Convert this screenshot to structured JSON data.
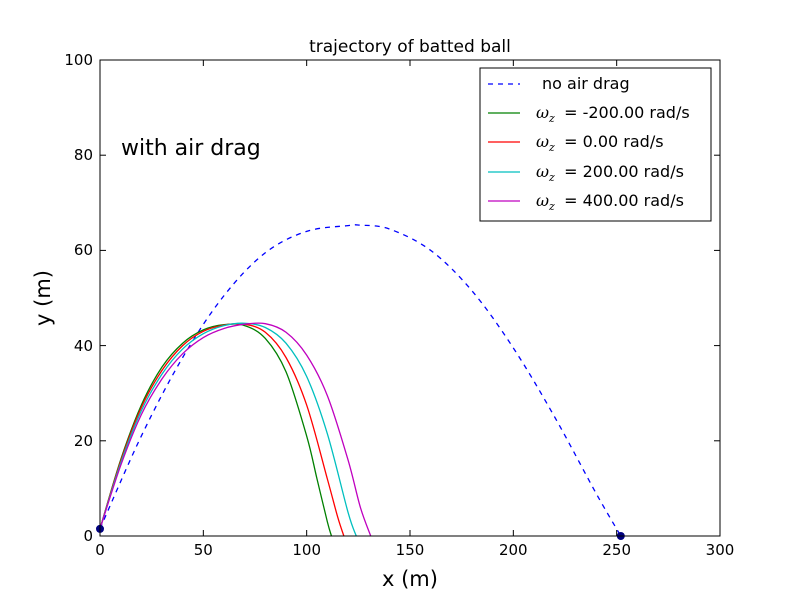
{
  "chart_data": {
    "type": "line",
    "title": "trajectory of batted ball",
    "xlabel": "x (m)",
    "ylabel": "y (m)",
    "xlim": [
      0,
      300
    ],
    "ylim": [
      0,
      100
    ],
    "xticks": [
      "0",
      "50",
      "100",
      "150",
      "200",
      "250",
      "300"
    ],
    "yticks": [
      "0",
      "20",
      "40",
      "60",
      "80",
      "100"
    ],
    "grid": false,
    "legend_position": "top-right",
    "annotation": "with air drag",
    "series": [
      {
        "name": "no air drag",
        "color": "#0000ff",
        "style": "dashed",
        "x": [
          0,
          20,
          40,
          60,
          80,
          100,
          120,
          126,
          140,
          160,
          180,
          200,
          220,
          240,
          252
        ],
        "y": [
          1.5,
          21.0,
          37.5,
          50.5,
          59.5,
          64.0,
          65.2,
          65.3,
          64.5,
          60.0,
          51.5,
          39.5,
          25.0,
          9.0,
          0
        ]
      },
      {
        "name": "ω_z = -200.00 rad/s",
        "label_prefix": "ω",
        "label_sub": "z",
        "label_rest": " = -200.00 rad/s",
        "color": "#008000",
        "style": "solid",
        "x": [
          0,
          10,
          20,
          30,
          40,
          50,
          60,
          70,
          80,
          90,
          100,
          105,
          110,
          112
        ],
        "y": [
          1.5,
          16.0,
          27.5,
          35.5,
          40.5,
          43.3,
          44.4,
          44.2,
          41.5,
          34.5,
          21.0,
          12.0,
          3.0,
          0
        ]
      },
      {
        "name": "ω_z = 0.00 rad/s",
        "label_prefix": "ω",
        "label_sub": "z",
        "label_rest": " = 0.00 rad/s",
        "color": "#ff0000",
        "style": "solid",
        "x": [
          0,
          10,
          20,
          30,
          40,
          50,
          60,
          70,
          80,
          90,
          100,
          110,
          115,
          118
        ],
        "y": [
          1.5,
          15.7,
          27.0,
          34.8,
          40.0,
          43.0,
          44.3,
          44.5,
          42.8,
          37.5,
          27.5,
          12.0,
          4.0,
          0
        ]
      },
      {
        "name": "ω_z = 200.00 rad/s",
        "label_prefix": "ω",
        "label_sub": "z",
        "label_rest": " = 200.00 rad/s",
        "color": "#00bfbf",
        "style": "solid",
        "x": [
          0,
          10,
          20,
          30,
          40,
          50,
          60,
          70,
          80,
          90,
          100,
          110,
          120,
          124
        ],
        "y": [
          1.5,
          15.3,
          26.3,
          34.0,
          39.3,
          42.5,
          44.2,
          44.7,
          43.8,
          40.5,
          33.5,
          21.5,
          5.0,
          0
        ]
      },
      {
        "name": "ω_z = 400.00 rad/s",
        "label_prefix": "ω",
        "label_sub": "z",
        "label_rest": " = 400.00 rad/s",
        "color": "#bf00bf",
        "style": "solid",
        "x": [
          0,
          10,
          20,
          30,
          40,
          50,
          60,
          70,
          80,
          90,
          100,
          110,
          120,
          126,
          131
        ],
        "y": [
          1.5,
          14.8,
          25.5,
          33.0,
          38.3,
          41.7,
          43.6,
          44.5,
          44.6,
          42.8,
          38.0,
          29.5,
          16.0,
          6.0,
          0
        ]
      }
    ],
    "markers": [
      {
        "x": 0,
        "y": 1.5,
        "color": "#00007f"
      },
      {
        "x": 252,
        "y": 0,
        "color": "#00007f"
      }
    ]
  }
}
